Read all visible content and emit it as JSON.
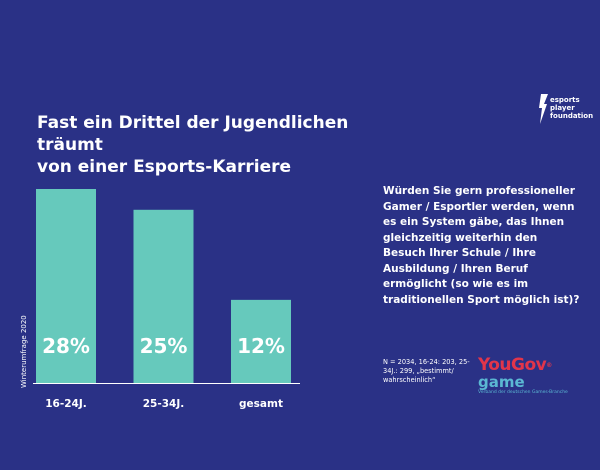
{
  "title_lines": [
    "Fast ein Drittel der Jugendlichen träumt",
    "von einer Esports-Karriere"
  ],
  "logo": {
    "lines": [
      "esports",
      "player",
      "foundation"
    ],
    "icon": "lightning-icon"
  },
  "question": "Würden Sie gern professioneller Gamer / Esportler werden, wenn es ein System gäbe, das Ihnen gleichzeitig weiterhin den Besuch Ihrer Schule / Ihre Ausbildung / Ihren Beruf ermöglicht (so wie es im traditionellen Sport möglich ist)?",
  "source_label": "Winterumfrage 2020",
  "note": "N = 2034, 16-24: 203, 25-34J.: 299, „bestimmt/ wahrscheinlich“",
  "yougov": {
    "you": "You",
    "gov": "Gov",
    "reg": "®",
    "game": "game",
    "sub": "Verband der deutschen Games-Branche"
  },
  "colors": {
    "background": "#2a3186",
    "bar": "#66c9bc",
    "text": "#ffffff"
  },
  "chart_data": {
    "type": "bar",
    "categories": [
      "16-24J.",
      "25-34J.",
      "gesamt"
    ],
    "values": [
      28,
      25,
      12
    ],
    "value_labels": [
      "28%",
      "25%",
      "12%"
    ],
    "ylim": [
      0,
      28
    ],
    "unit": "%",
    "grid": false,
    "legend": "none"
  }
}
